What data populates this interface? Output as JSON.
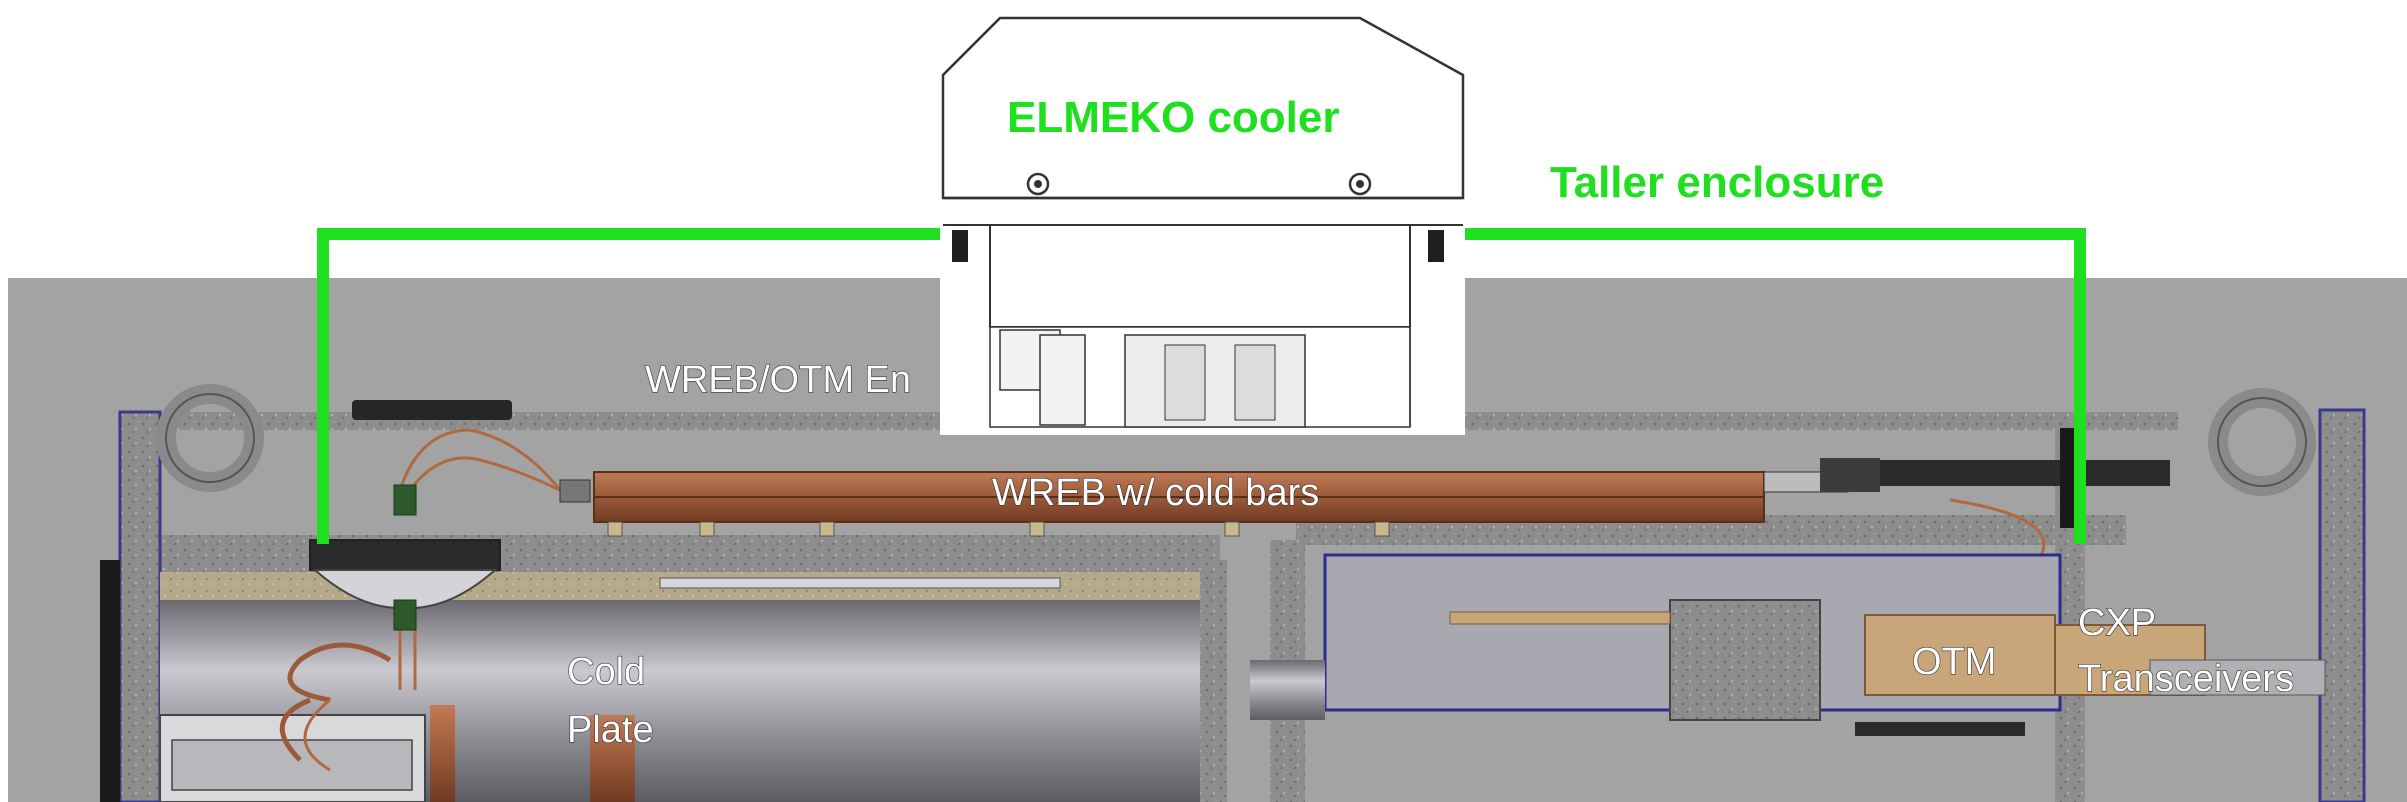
{
  "diagram": {
    "labels": {
      "cooler": "ELMEKO cooler",
      "enclosure": "Taller enclosure",
      "wreb_otm": "WREB/OTM En",
      "wreb": "WREB w/ cold bars",
      "cold_plate_line1": "Cold",
      "cold_plate_line2": "Plate",
      "otm": "OTM",
      "cxp_line1": "CXP",
      "cxp_line2": "Transceivers"
    },
    "colors": {
      "highlight_green": "#1ee01e",
      "background_gray": "#a3a3a3",
      "housing_speckle": "#8f8f8f",
      "copper": "#9b5a3a",
      "otm_tan": "#c9a57a"
    }
  }
}
